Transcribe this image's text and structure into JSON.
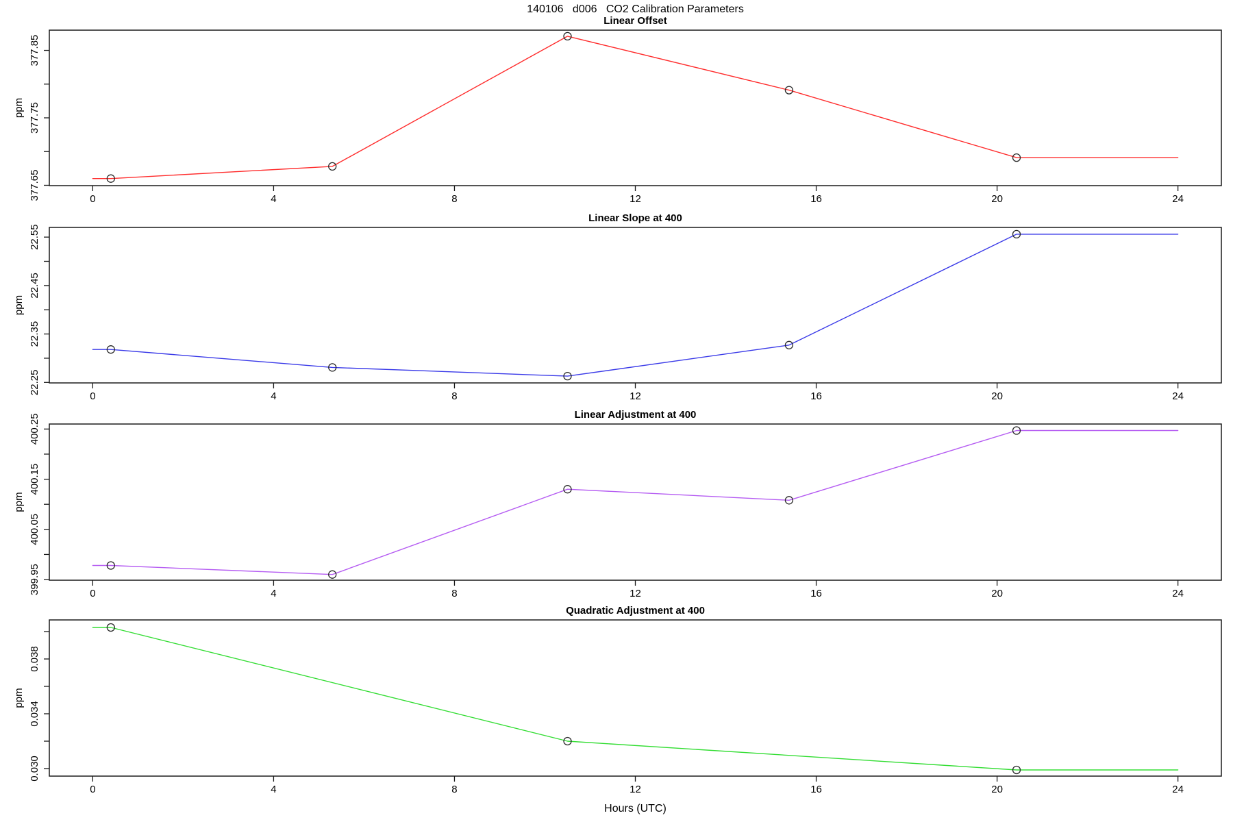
{
  "title": "140106   d006   CO2 Calibration Parameters",
  "xlabel": "Hours (UTC)",
  "chart_data": [
    {
      "type": "line",
      "title": "Linear Offset",
      "ylabel": "ppm",
      "color": "#FF2D2D",
      "marker": "open-circle",
      "x": [
        0.4,
        5.3,
        10.5,
        15.4,
        20.43
      ],
      "values": [
        377.66,
        377.678,
        377.871,
        377.791,
        377.691
      ],
      "extend_x": [
        0,
        24
      ],
      "xlim": [
        -0.96,
        24.96
      ],
      "ylim": [
        377.6495,
        377.88
      ],
      "xticks": [
        0,
        4,
        8,
        12,
        16,
        20,
        24
      ],
      "yticks": [
        {
          "value": 377.65,
          "label": "377.65"
        },
        {
          "value": 377.7,
          "label": ""
        },
        {
          "value": 377.75,
          "label": "377.75"
        },
        {
          "value": 377.8,
          "label": ""
        },
        {
          "value": 377.85,
          "label": "377.85"
        }
      ]
    },
    {
      "type": "line",
      "title": "Linear Slope at 400",
      "ylabel": "ppm",
      "color": "#3A3AE8",
      "marker": "open-circle",
      "x": [
        0.4,
        5.3,
        10.5,
        15.4,
        20.43
      ],
      "values": [
        22.318,
        22.281,
        22.263,
        22.327,
        22.556
      ],
      "extend_x": [
        0,
        24
      ],
      "xlim": [
        -0.96,
        24.96
      ],
      "ylim": [
        22.249,
        22.57
      ],
      "xticks": [
        0,
        4,
        8,
        12,
        16,
        20,
        24
      ],
      "yticks": [
        {
          "value": 22.25,
          "label": "22.25"
        },
        {
          "value": 22.3,
          "label": ""
        },
        {
          "value": 22.35,
          "label": "22.35"
        },
        {
          "value": 22.4,
          "label": ""
        },
        {
          "value": 22.45,
          "label": "22.45"
        },
        {
          "value": 22.5,
          "label": ""
        },
        {
          "value": 22.55,
          "label": "22.55"
        }
      ]
    },
    {
      "type": "line",
      "title": "Linear Adjustment at 400",
      "ylabel": "ppm",
      "color": "#B55CF2",
      "marker": "open-circle",
      "x": [
        0.4,
        5.3,
        10.5,
        15.4,
        20.43
      ],
      "values": [
        399.978,
        399.96,
        400.13,
        400.108,
        400.247
      ],
      "extend_x": [
        0,
        24
      ],
      "xlim": [
        -0.96,
        24.96
      ],
      "ylim": [
        399.9487,
        400.26
      ],
      "xticks": [
        0,
        4,
        8,
        12,
        16,
        20,
        24
      ],
      "yticks": [
        {
          "value": 399.95,
          "label": "399.95"
        },
        {
          "value": 400.0,
          "label": ""
        },
        {
          "value": 400.05,
          "label": "400.05"
        },
        {
          "value": 400.1,
          "label": ""
        },
        {
          "value": 400.15,
          "label": "400.15"
        },
        {
          "value": 400.2,
          "label": ""
        },
        {
          "value": 400.25,
          "label": "400.25"
        }
      ]
    },
    {
      "type": "line",
      "title": "Quadratic Adjustment at 400",
      "ylabel": "ppm",
      "color": "#33DD33",
      "marker": "open-circle",
      "x": [
        0.4,
        10.5,
        20.43
      ],
      "values": [
        0.0403,
        0.032,
        0.0299
      ],
      "extend_x": [
        0,
        24
      ],
      "xlim": [
        -0.96,
        24.96
      ],
      "ylim": [
        0.02945,
        0.04085
      ],
      "xticks": [
        0,
        4,
        8,
        12,
        16,
        20,
        24
      ],
      "yticks": [
        {
          "value": 0.03,
          "label": "0.030"
        },
        {
          "value": 0.032,
          "label": ""
        },
        {
          "value": 0.034,
          "label": "0.034"
        },
        {
          "value": 0.036,
          "label": ""
        },
        {
          "value": 0.038,
          "label": "0.038"
        },
        {
          "value": 0.04,
          "label": ""
        }
      ]
    }
  ]
}
